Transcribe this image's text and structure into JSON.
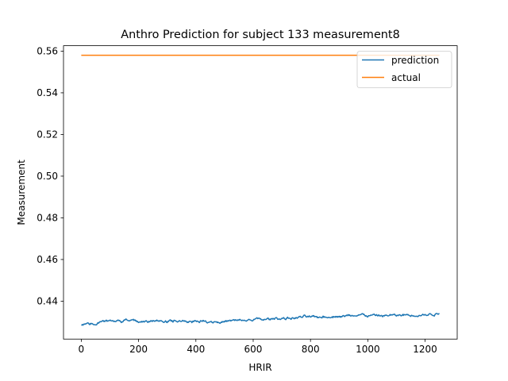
{
  "chart_data": {
    "type": "line",
    "title": "Anthro Prediction for subject 133 measurement8",
    "xlabel": "HRIR",
    "ylabel": "Measurement",
    "xlim": [
      -62,
      1312
    ],
    "ylim": [
      0.4218,
      0.5626
    ],
    "xticks": [
      0,
      200,
      400,
      600,
      800,
      1000,
      1200
    ],
    "yticks": [
      0.44,
      0.46,
      0.48,
      0.5,
      0.52,
      0.54,
      0.56
    ],
    "ytick_decimals": 2,
    "grid": false,
    "legend_position": "top-right",
    "series": [
      {
        "name": "prediction",
        "color": "#1f77b4",
        "x_start": 0,
        "x_end": 1250,
        "trend_points": [
          [
            0,
            0.4285
          ],
          [
            50,
            0.429
          ],
          [
            100,
            0.43
          ],
          [
            150,
            0.4305
          ],
          [
            200,
            0.4305
          ],
          [
            300,
            0.43
          ],
          [
            400,
            0.4305
          ],
          [
            500,
            0.4302
          ],
          [
            600,
            0.431
          ],
          [
            700,
            0.4318
          ],
          [
            800,
            0.4325
          ],
          [
            900,
            0.4328
          ],
          [
            1000,
            0.433
          ],
          [
            1100,
            0.433
          ],
          [
            1200,
            0.4333
          ],
          [
            1250,
            0.434
          ]
        ],
        "noise_amplitude": 0.0012
      },
      {
        "name": "actual",
        "color": "#ff7f0e",
        "x": [
          0,
          1250
        ],
        "y": [
          0.558,
          0.558
        ]
      }
    ]
  }
}
